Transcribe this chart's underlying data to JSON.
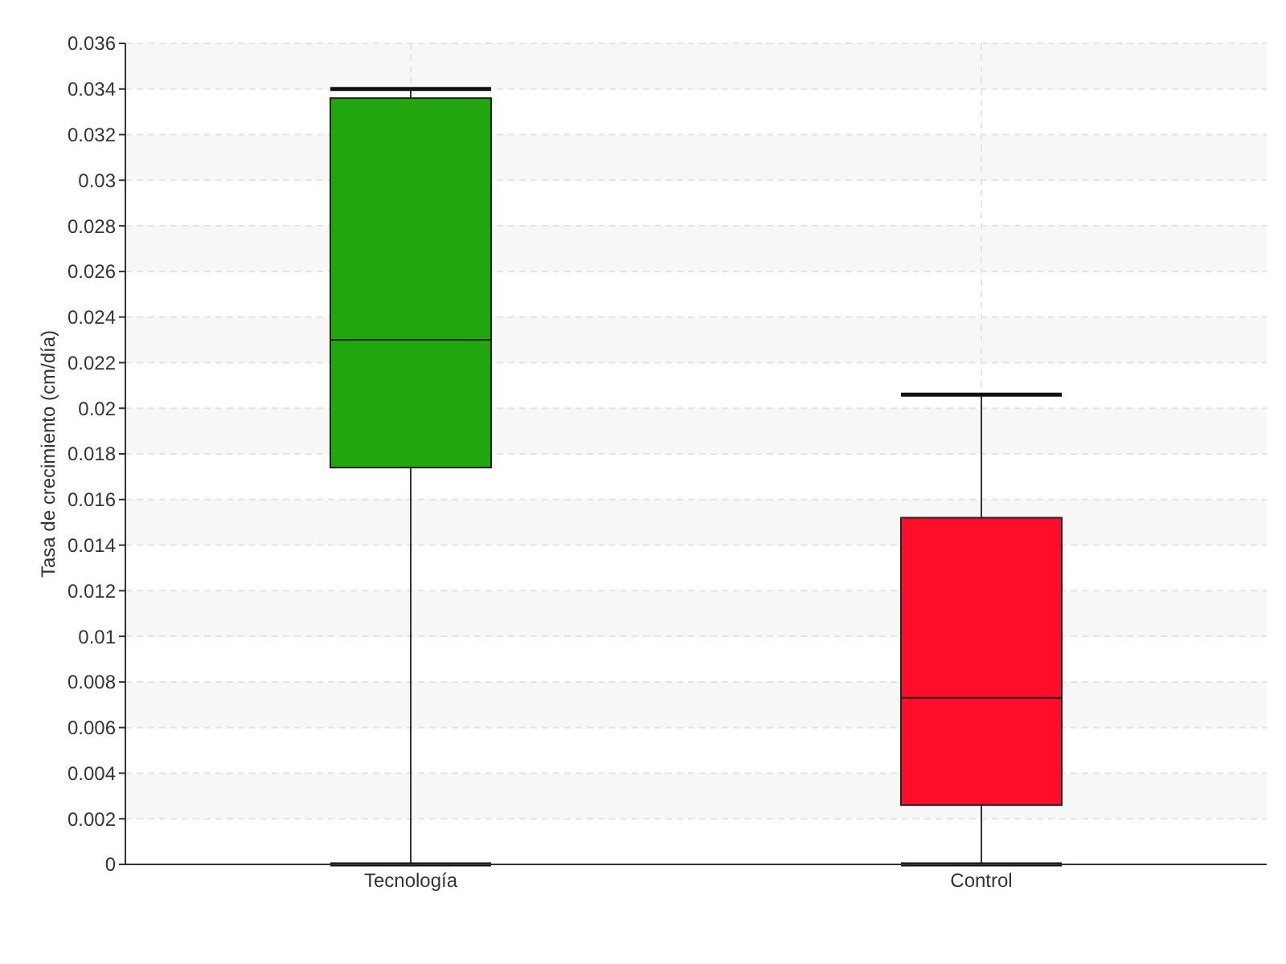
{
  "chart_data": {
    "type": "box",
    "ylabel": "Tasa de crecimiento (cm/día)",
    "categories": [
      "Tecnología",
      "Control"
    ],
    "boxes": [
      {
        "low": 0,
        "q1": 0.0174,
        "median": 0.023,
        "q3": 0.0336,
        "high": 0.034
      },
      {
        "low": 0,
        "q1": 0.0026,
        "median": 0.0073,
        "q3": 0.0152,
        "high": 0.0206
      }
    ],
    "colors": [
      "#22a60e",
      "#ff0d2a"
    ],
    "ylim": [
      0,
      0.036
    ],
    "yticks": [
      0,
      0.002,
      0.004,
      0.006,
      0.008,
      0.01,
      0.012,
      0.014,
      0.016,
      0.018,
      0.02,
      0.022,
      0.024,
      0.026,
      0.028,
      0.03,
      0.032,
      0.034,
      0.036
    ],
    "grid": true
  }
}
